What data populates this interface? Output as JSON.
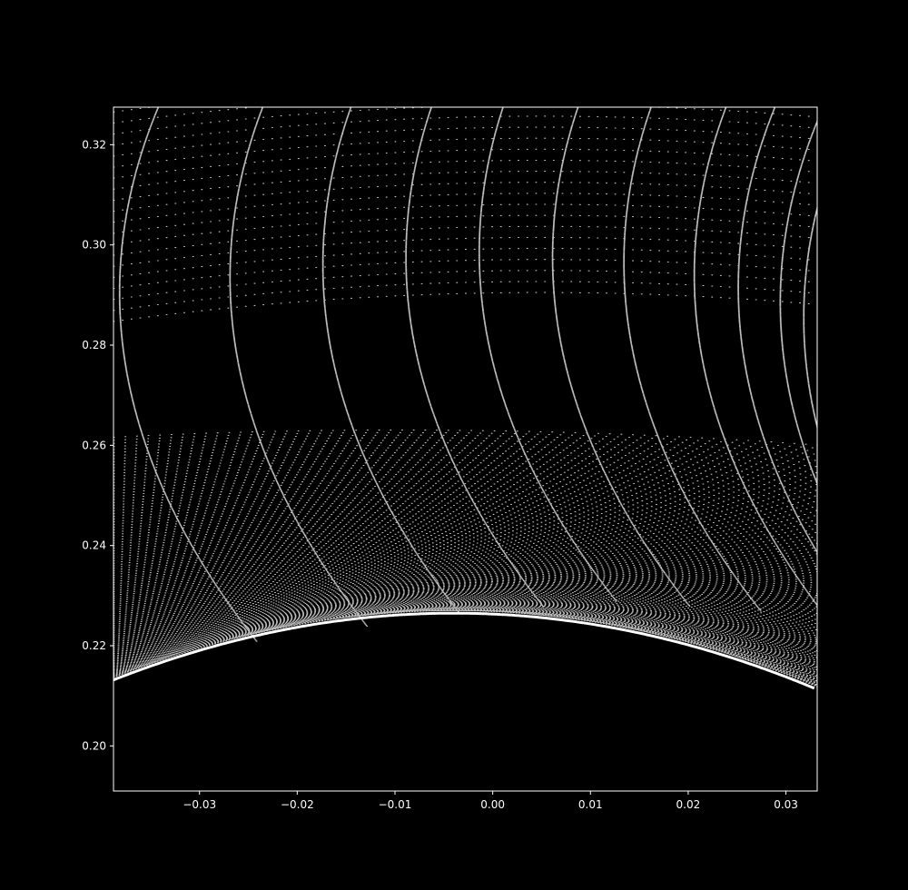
{
  "chart_data": {
    "type": "scatter",
    "title": "",
    "xlabel": "",
    "ylabel": "",
    "xlim": [
      -0.0388,
      0.0332
    ],
    "ylim": [
      0.191,
      0.3275
    ],
    "grid": false,
    "legend": "none",
    "x_ticks": [
      -0.03,
      -0.02,
      -0.01,
      0.0,
      0.01,
      0.02,
      0.03
    ],
    "x_tick_labels": [
      "−0.03",
      "−0.02",
      "−0.01",
      "0.00",
      "0.01",
      "0.02",
      "0.03"
    ],
    "y_ticks": [
      0.2,
      0.22,
      0.24,
      0.26,
      0.28,
      0.3,
      0.32
    ],
    "y_tick_labels": [
      "0.20",
      "0.22",
      "0.24",
      "0.26",
      "0.28",
      "0.30",
      "0.32"
    ],
    "series": [
      {
        "marker_color": "#ffffff",
        "marker": "point",
        "description_values": {
          "boundary_curve_vertex_x": -0.004,
          "boundary_curve_vertex_y": 0.2265,
          "boundary_curve_left_y": 0.2135,
          "boundary_curve_right_y": 0.211,
          "dense_band_top_y": 0.262,
          "turning_point_x": [
            -0.0378,
            -0.0265,
            -0.017,
            -0.0085,
            -0.001,
            0.0065,
            0.0138,
            0.021,
            0.0255,
            0.0298,
            0.0322
          ],
          "turning_point_y": [
            0.2785,
            0.2815,
            0.284,
            0.2855,
            0.2865,
            0.2855,
            0.2845,
            0.282,
            0.2795,
            0.2765,
            0.2735
          ]
        }
      }
    ]
  },
  "colors": {
    "background": "#000000",
    "axes_face": "#000000",
    "axes_edge": "#ffffff",
    "marker": "#ffffff",
    "tick_text": "#ffffff"
  }
}
